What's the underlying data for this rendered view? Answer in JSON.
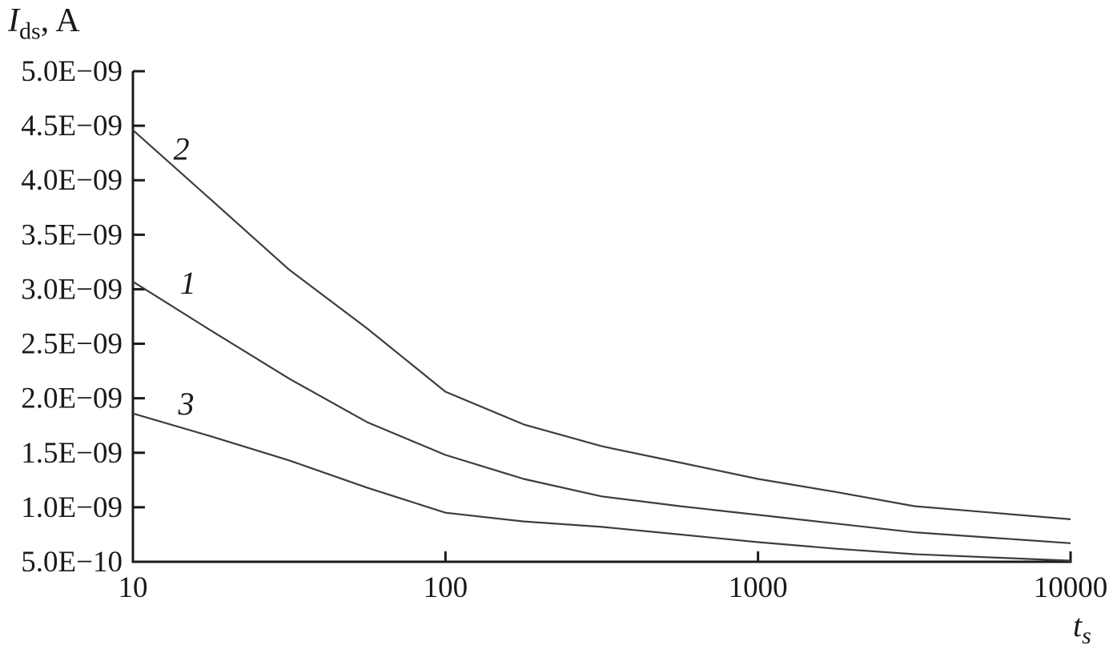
{
  "figure": {
    "background": "#ffffff",
    "axis_color": "#1a1a1a",
    "curve_color": "#3d3d3d",
    "text_color": "#1a1a1a"
  },
  "y_axis_title": {
    "main": "I",
    "sub": "ds",
    "rest": ", A"
  },
  "x_axis_title": {
    "main": "t",
    "sub": "s"
  },
  "chart_data": {
    "type": "line",
    "x_scale": "log",
    "ylabel": "I_ds, A",
    "xlabel": "t_s",
    "xlim": [
      10,
      10000
    ],
    "ylim": [
      5e-10,
      5e-09
    ],
    "grid": false,
    "legend": "inline-curve-labels",
    "x_ticks": [
      {
        "value": 10,
        "label": "10"
      },
      {
        "value": 100,
        "label": "100"
      },
      {
        "value": 1000,
        "label": "1000"
      },
      {
        "value": 10000,
        "label": "10000"
      }
    ],
    "y_ticks": [
      {
        "value": 5e-10,
        "label": "5.0E−10"
      },
      {
        "value": 1e-09,
        "label": "1.0E−09"
      },
      {
        "value": 1.5e-09,
        "label": "1.5E−09"
      },
      {
        "value": 2e-09,
        "label": "2.0E−09"
      },
      {
        "value": 2.5e-09,
        "label": "2.5E−09"
      },
      {
        "value": 3e-09,
        "label": "3.0E−09"
      },
      {
        "value": 3.5e-09,
        "label": "3.5E−09"
      },
      {
        "value": 4e-09,
        "label": "4.0E−09"
      },
      {
        "value": 4.5e-09,
        "label": "4.5E−09"
      },
      {
        "value": 5e-09,
        "label": "5.0E−09"
      }
    ],
    "x": [
      10,
      17.8,
      31.6,
      56.2,
      100,
      178,
      316,
      562,
      1000,
      1778,
      3162,
      5623,
      10000
    ],
    "series": [
      {
        "name": "2",
        "values": [
          4.46e-09,
          3.82e-09,
          3.18e-09,
          2.64e-09,
          2.06e-09,
          1.76e-09,
          1.56e-09,
          1.41e-09,
          1.26e-09,
          1.14e-09,
          1.01e-09,
          9.5e-10,
          8.9e-10
        ],
        "label_at": {
          "x": 14.3,
          "y": 4.19e-09
        }
      },
      {
        "name": "1",
        "values": [
          3.07e-09,
          2.62e-09,
          2.18e-09,
          1.78e-09,
          1.48e-09,
          1.26e-09,
          1.1e-09,
          1.01e-09,
          9.3e-10,
          8.5e-10,
          7.7e-10,
          7.2e-10,
          6.7e-10
        ],
        "label_at": {
          "x": 15.0,
          "y": 2.96e-09
        }
      },
      {
        "name": "3",
        "values": [
          1.86e-09,
          1.65e-09,
          1.43e-09,
          1.18e-09,
          9.5e-10,
          8.7e-10,
          8.2e-10,
          7.5e-10,
          6.8e-10,
          6.2e-10,
          5.7e-10,
          5.4e-10,
          5.1e-10
        ],
        "label_at": {
          "x": 14.8,
          "y": 1.85e-09
        }
      }
    ]
  }
}
